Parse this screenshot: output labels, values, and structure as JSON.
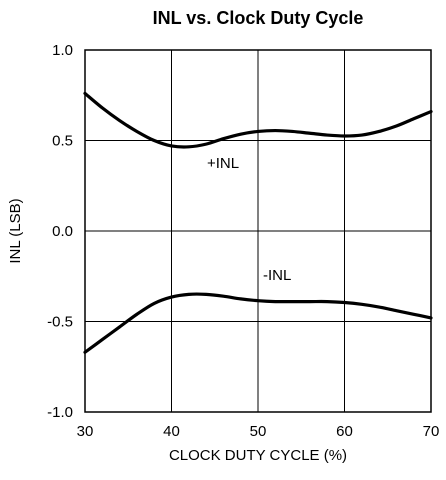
{
  "chart_data": {
    "type": "line",
    "title": "INL vs. Clock Duty Cycle",
    "xlabel": "CLOCK DUTY CYCLE (%)",
    "ylabel": "INL (LSB)",
    "xlim": [
      30,
      70
    ],
    "ylim": [
      -1.0,
      1.0
    ],
    "x_ticks": [
      "30",
      "40",
      "50",
      "60",
      "70"
    ],
    "y_ticks": [
      "-1.0",
      "-0.5",
      "0.0",
      "0.5",
      "1.0"
    ],
    "grid": true,
    "series": [
      {
        "name": "+INL",
        "x": [
          30,
          32,
          34,
          36,
          38,
          40,
          42,
          44,
          46,
          48,
          50,
          52,
          54,
          56,
          58,
          60,
          62,
          64,
          66,
          68,
          70
        ],
        "y": [
          0.76,
          0.68,
          0.61,
          0.55,
          0.5,
          0.47,
          0.465,
          0.48,
          0.51,
          0.535,
          0.55,
          0.555,
          0.55,
          0.54,
          0.53,
          0.525,
          0.53,
          0.55,
          0.58,
          0.62,
          0.66
        ]
      },
      {
        "name": "-INL",
        "x": [
          30,
          32,
          34,
          36,
          38,
          40,
          42,
          44,
          46,
          48,
          50,
          52,
          54,
          56,
          58,
          60,
          62,
          64,
          66,
          68,
          70
        ],
        "y": [
          -0.67,
          -0.6,
          -0.53,
          -0.46,
          -0.4,
          -0.365,
          -0.35,
          -0.35,
          -0.36,
          -0.375,
          -0.385,
          -0.39,
          -0.39,
          -0.39,
          -0.39,
          -0.395,
          -0.405,
          -0.42,
          -0.44,
          -0.46,
          -0.48
        ]
      }
    ],
    "annotations": [
      "+INL",
      "-INL"
    ]
  }
}
